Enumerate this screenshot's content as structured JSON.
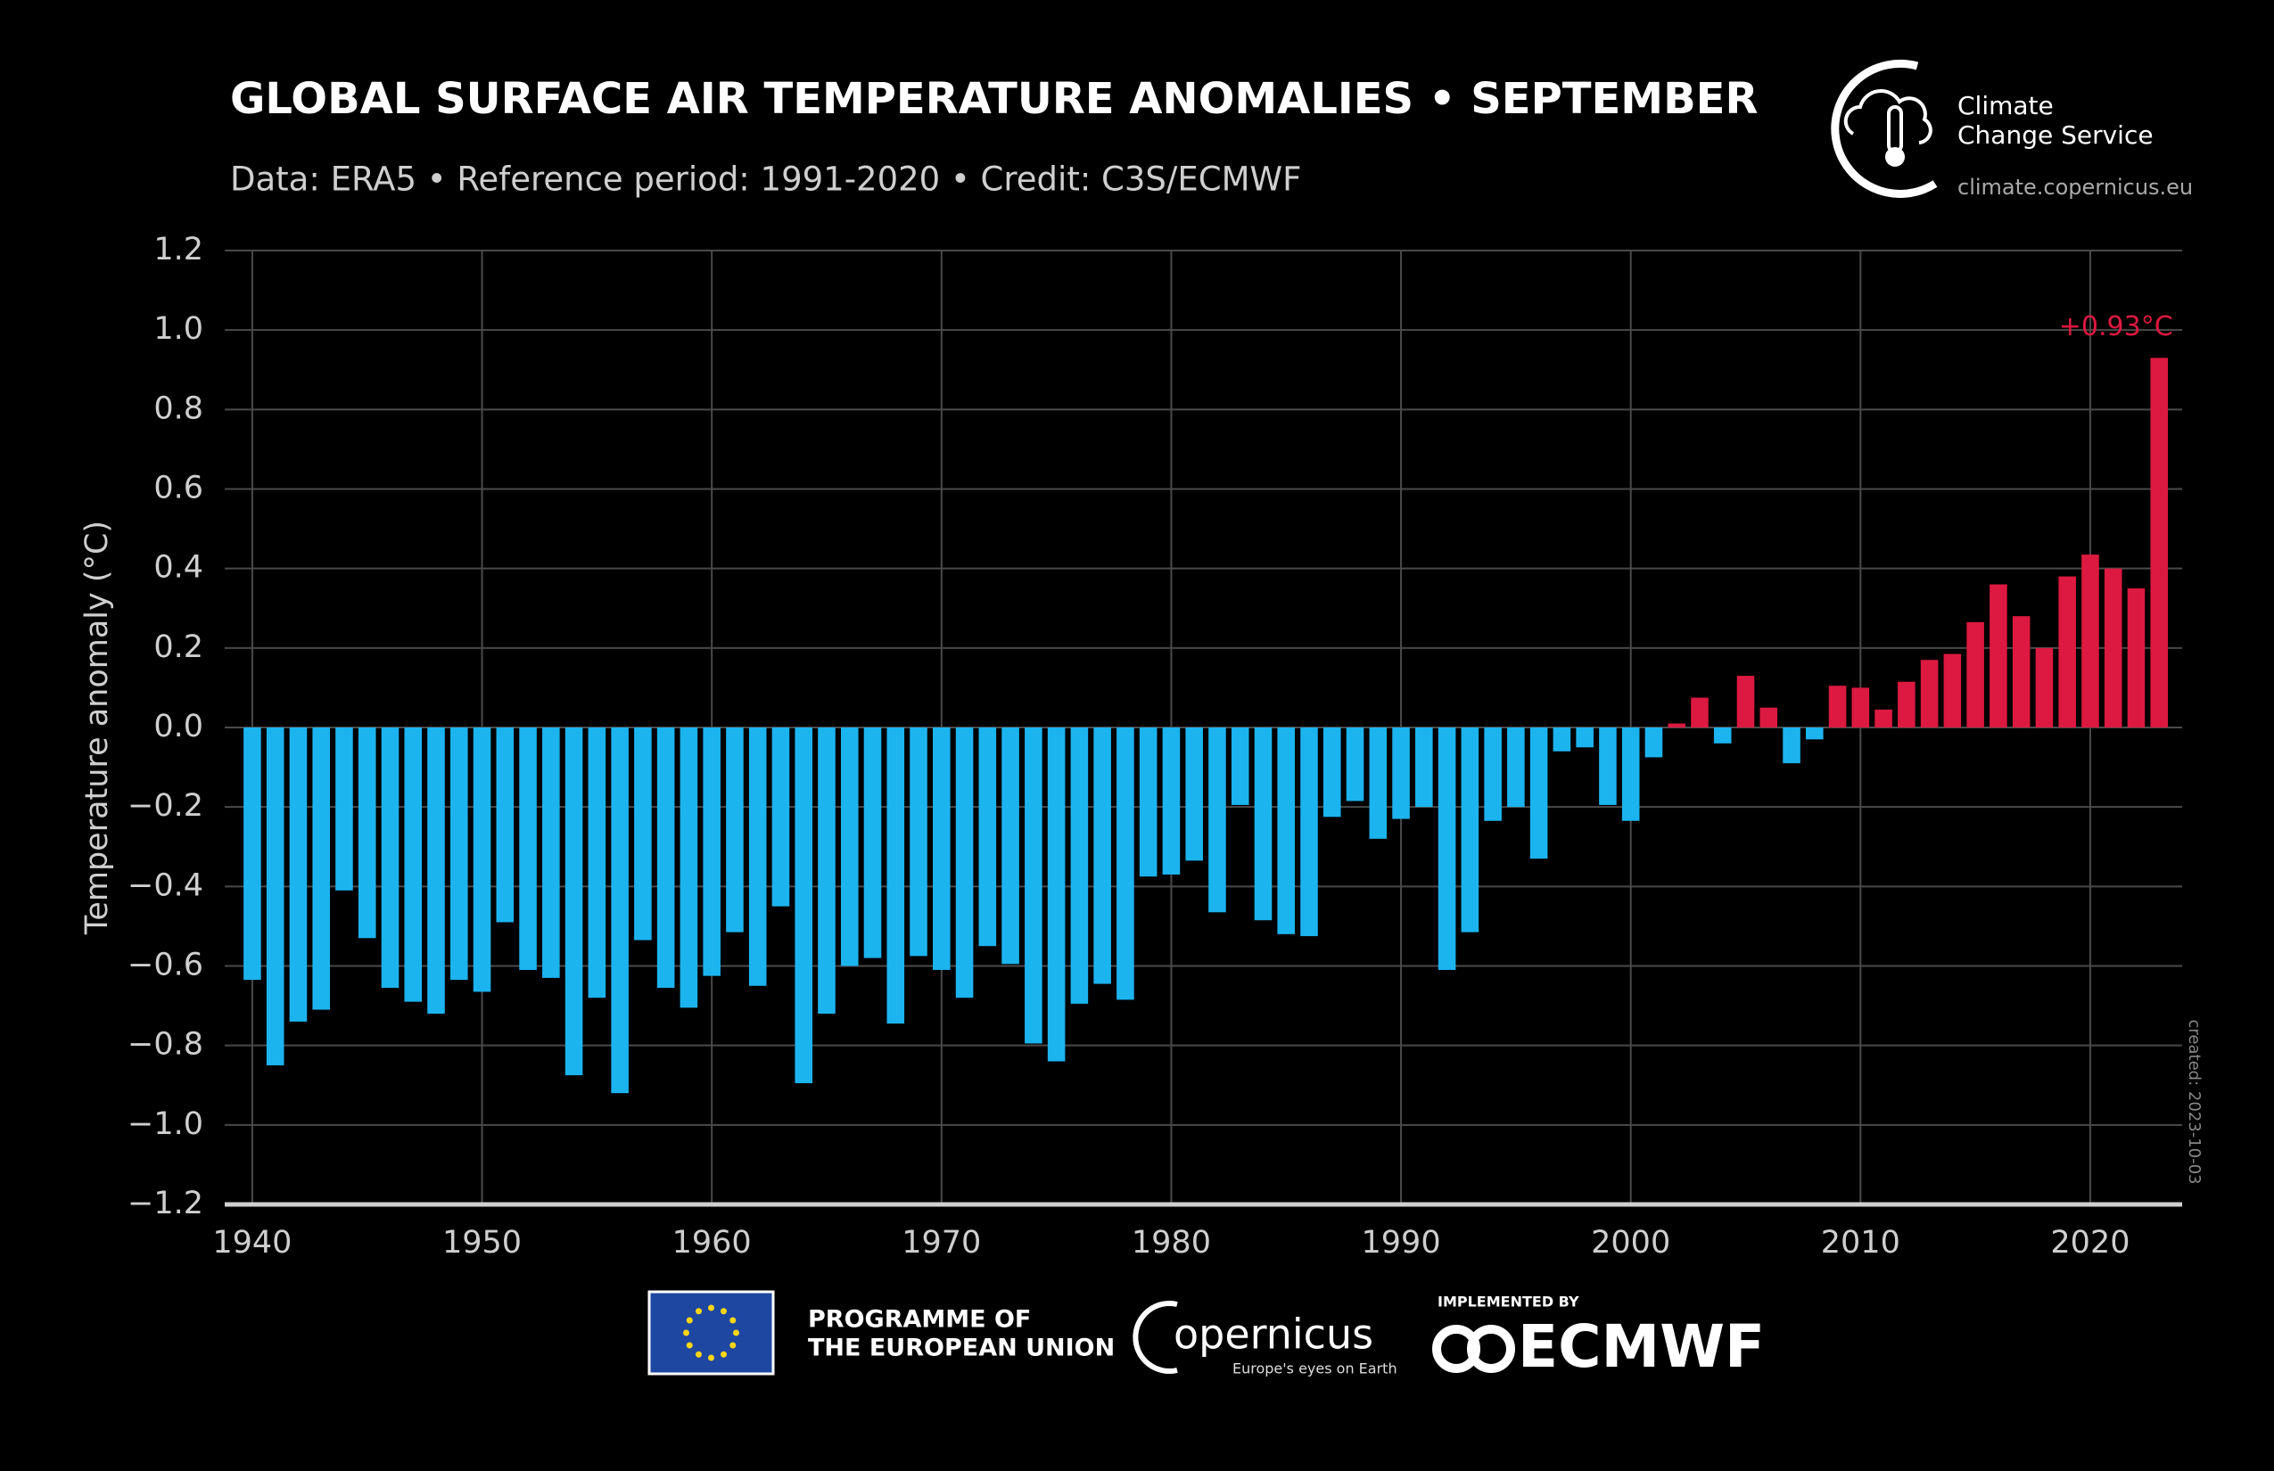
{
  "chart_data": {
    "type": "bar",
    "title": "GLOBAL SURFACE AIR TEMPERATURE ANOMALIES • SEPTEMBER",
    "subtitle": "Data: ERA5 • Reference period: 1991-2020 • Credit: C3S/ECMWF",
    "y_label": "Temperature anomaly (°C)",
    "x": [
      1940,
      1941,
      1942,
      1943,
      1944,
      1945,
      1946,
      1947,
      1948,
      1949,
      1950,
      1951,
      1952,
      1953,
      1954,
      1955,
      1956,
      1957,
      1958,
      1959,
      1960,
      1961,
      1962,
      1963,
      1964,
      1965,
      1966,
      1967,
      1968,
      1969,
      1970,
      1971,
      1972,
      1973,
      1974,
      1975,
      1976,
      1977,
      1978,
      1979,
      1980,
      1981,
      1982,
      1983,
      1984,
      1985,
      1986,
      1987,
      1988,
      1989,
      1990,
      1991,
      1992,
      1993,
      1994,
      1995,
      1996,
      1997,
      1998,
      1999,
      2000,
      2001,
      2002,
      2003,
      2004,
      2005,
      2006,
      2007,
      2008,
      2009,
      2010,
      2011,
      2012,
      2013,
      2014,
      2015,
      2016,
      2017,
      2018,
      2019,
      2020,
      2021,
      2022,
      2023
    ],
    "values": [
      -0.635,
      -0.85,
      -0.74,
      -0.71,
      -0.41,
      -0.53,
      -0.655,
      -0.69,
      -0.72,
      -0.635,
      -0.665,
      -0.49,
      -0.61,
      -0.63,
      -0.875,
      -0.68,
      -0.92,
      -0.535,
      -0.655,
      -0.705,
      -0.625,
      -0.515,
      -0.65,
      -0.45,
      -0.895,
      -0.72,
      -0.6,
      -0.58,
      -0.745,
      -0.575,
      -0.61,
      -0.68,
      -0.55,
      -0.595,
      -0.795,
      -0.84,
      -0.695,
      -0.645,
      -0.685,
      -0.375,
      -0.37,
      -0.335,
      -0.465,
      -0.195,
      -0.485,
      -0.52,
      -0.525,
      -0.225,
      -0.185,
      -0.28,
      -0.23,
      -0.2,
      -0.61,
      -0.515,
      -0.235,
      -0.2,
      -0.33,
      -0.06,
      -0.05,
      -0.195,
      -0.235,
      -0.075,
      0.01,
      0.075,
      -0.04,
      0.13,
      0.05,
      -0.09,
      -0.03,
      0.105,
      0.1,
      0.045,
      0.115,
      0.17,
      0.185,
      0.265,
      0.36,
      0.28,
      0.2,
      0.38,
      0.435,
      0.4,
      0.35,
      0.93
    ],
    "value_labels": [
      null,
      null,
      null,
      null,
      null,
      null,
      null,
      null,
      null,
      null,
      null,
      null,
      null,
      null,
      null,
      null,
      null,
      null,
      null,
      null,
      null,
      null,
      null,
      null,
      null,
      null,
      null,
      null,
      null,
      null,
      null,
      null,
      null,
      null,
      null,
      null,
      null,
      null,
      null,
      null,
      null,
      null,
      null,
      null,
      null,
      null,
      null,
      null,
      null,
      null,
      null,
      null,
      null,
      null,
      null,
      null,
      null,
      null,
      null,
      null,
      null,
      null,
      null,
      null,
      null,
      null,
      null,
      null,
      null,
      null,
      null,
      null,
      null,
      null,
      null,
      null,
      null,
      null,
      null,
      null,
      null,
      null,
      null,
      "+0.93°C"
    ],
    "color_negative": "#1cb4ef",
    "color_positive": "#dc1940",
    "xlim": [
      1938.8,
      2024
    ],
    "xticks": [
      1940,
      1950,
      1960,
      1970,
      1980,
      1990,
      2000,
      2010,
      2020
    ],
    "ylim": [
      -1.2,
      1.2
    ],
    "yticks": [
      {
        "value": -1.2,
        "label": "−1.2"
      },
      {
        "value": -1.0,
        "label": "−1.0"
      },
      {
        "value": -0.8,
        "label": "−0.8"
      },
      {
        "value": -0.6,
        "label": "−0.6"
      },
      {
        "value": -0.4,
        "label": "−0.4"
      },
      {
        "value": -0.2,
        "label": "−0.2"
      },
      {
        "value": 0,
        "label": "0.0"
      },
      0.2,
      0.4,
      0.6,
      0.8,
      {
        "value": 1.0,
        "label": "1.0"
      },
      1.2
    ],
    "grid": true,
    "created": "created: 2023-10-03"
  },
  "branding": {
    "service_line1": "Climate",
    "service_line2": "Change Service",
    "url": "climate.copernicus.eu",
    "eu_line1": "PROGRAMME OF",
    "eu_line2": "THE EUROPEAN UNION",
    "copernicus": "opernicus",
    "copernicus_tagline": "Europe's eyes on Earth",
    "implemented_by": "IMPLEMENTED BY",
    "ecmwf": "ECMWF"
  }
}
